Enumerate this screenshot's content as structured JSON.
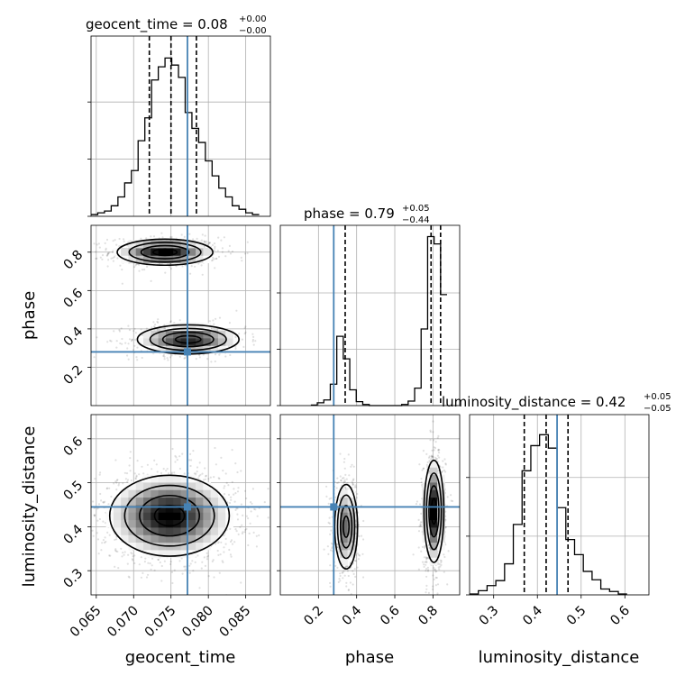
{
  "chart_data": {
    "type": "corner",
    "parameters": [
      "geocent_time",
      "phase",
      "luminosity_distance"
    ],
    "truths": {
      "geocent_time": 0.0772,
      "phase": 0.28,
      "luminosity_distance": 0.445
    },
    "truth_color": "#4682b4",
    "axes": {
      "geocent_time": {
        "label": "geocent_time",
        "range": [
          0.0643,
          0.0883
        ],
        "ticks": [
          0.065,
          0.07,
          0.075,
          0.08,
          0.085
        ],
        "tick_labels": [
          "0.065",
          "0.070",
          "0.075",
          "0.080",
          "0.085"
        ]
      },
      "phase": {
        "label": "phase",
        "range": [
          0.0,
          0.94
        ],
        "ticks": [
          0.2,
          0.4,
          0.6,
          0.8
        ],
        "tick_labels": [
          "0.2",
          "0.4",
          "0.6",
          "0.8"
        ]
      },
      "luminosity_distance": {
        "label": "luminosity_distance",
        "range": [
          0.245,
          0.655
        ],
        "ticks": [
          0.3,
          0.4,
          0.5,
          0.6
        ],
        "tick_labels": [
          "0.3",
          "0.4",
          "0.5",
          "0.6"
        ]
      }
    },
    "titles": [
      {
        "param": "geocent_time",
        "main": "geocent_time = 0.08",
        "plus": "+0.00",
        "minus": "−0.00"
      },
      {
        "param": "phase",
        "main": "phase = 0.79",
        "plus": "+0.05",
        "minus": "−0.44"
      },
      {
        "param": "luminosity_distance",
        "main": "luminosity_distance = 0.42",
        "plus": "+0.05",
        "minus": "−0.05"
      }
    ],
    "histograms": [
      {
        "param": "geocent_time",
        "bin_edges": [
          0.0643,
          0.0652,
          0.0661,
          0.067,
          0.0679,
          0.0688,
          0.0697,
          0.0706,
          0.0715,
          0.0724,
          0.0733,
          0.0742,
          0.0751,
          0.076,
          0.0769,
          0.0778,
          0.0787,
          0.0796,
          0.0805,
          0.0814,
          0.0823,
          0.0832,
          0.0841,
          0.085,
          0.0859,
          0.0868
        ],
        "counts": [
          2,
          4,
          6,
          12,
          22,
          38,
          52,
          86,
          112,
          155,
          170,
          180,
          172,
          158,
          118,
          100,
          84,
          63,
          46,
          32,
          22,
          12,
          8,
          4,
          2
        ],
        "quantiles": [
          0.0721,
          0.075,
          0.0784
        ],
        "ylim": [
          0,
          205
        ],
        "ytick_values": [
          0,
          65,
          130
        ]
      },
      {
        "param": "phase",
        "bin_edges": [
          0.16,
          0.194,
          0.228,
          0.262,
          0.296,
          0.33,
          0.364,
          0.398,
          0.432,
          0.466,
          0.5,
          0.534,
          0.568,
          0.602,
          0.636,
          0.67,
          0.704,
          0.738,
          0.772,
          0.806,
          0.84,
          0.874
        ],
        "counts": [
          1,
          5,
          10,
          38,
          123,
          83,
          28,
          7,
          2,
          0,
          0,
          0,
          0,
          0,
          2,
          8,
          31,
          136,
          300,
          287,
          197
        ],
        "quantiles": [
          0.34,
          0.79,
          0.84
        ],
        "ylim": [
          0,
          320
        ],
        "ytick_values": [
          0,
          100,
          200
        ]
      },
      {
        "param": "luminosity_distance",
        "bin_edges": [
          0.245,
          0.265,
          0.285,
          0.305,
          0.325,
          0.345,
          0.365,
          0.385,
          0.405,
          0.425,
          0.445,
          0.465,
          0.485,
          0.505,
          0.525,
          0.545,
          0.565,
          0.585,
          0.605
        ],
        "counts": [
          1,
          5,
          11,
          17,
          37,
          84,
          148,
          178,
          191,
          175,
          104,
          66,
          48,
          28,
          18,
          7,
          4,
          1
        ],
        "quantiles": [
          0.37,
          0.42,
          0.47
        ],
        "ylim": [
          0,
          215
        ],
        "ytick_values": [
          0,
          70,
          140
        ]
      }
    ],
    "scatter_density": [
      {
        "x": "geocent_time",
        "y": "phase",
        "clusters": [
          {
            "center": [
              0.0742,
              0.8
            ],
            "sd": [
              0.0032,
              0.034
            ],
            "n": 700
          },
          {
            "center": [
              0.0773,
              0.345
            ],
            "sd": [
              0.0034,
              0.038
            ],
            "n": 620
          }
        ]
      },
      {
        "x": "geocent_time",
        "y": "luminosity_distance",
        "clusters": [
          {
            "center": [
              0.0748,
              0.425
            ],
            "sd": [
              0.004,
              0.046
            ],
            "n": 1600
          }
        ]
      },
      {
        "x": "phase",
        "y": "luminosity_distance",
        "clusters": [
          {
            "center": [
              0.345,
              0.4
            ],
            "sd": [
              0.03,
              0.048
            ],
            "n": 600
          },
          {
            "center": [
              0.805,
              0.435
            ],
            "sd": [
              0.026,
              0.058
            ],
            "n": 900
          }
        ]
      }
    ]
  }
}
